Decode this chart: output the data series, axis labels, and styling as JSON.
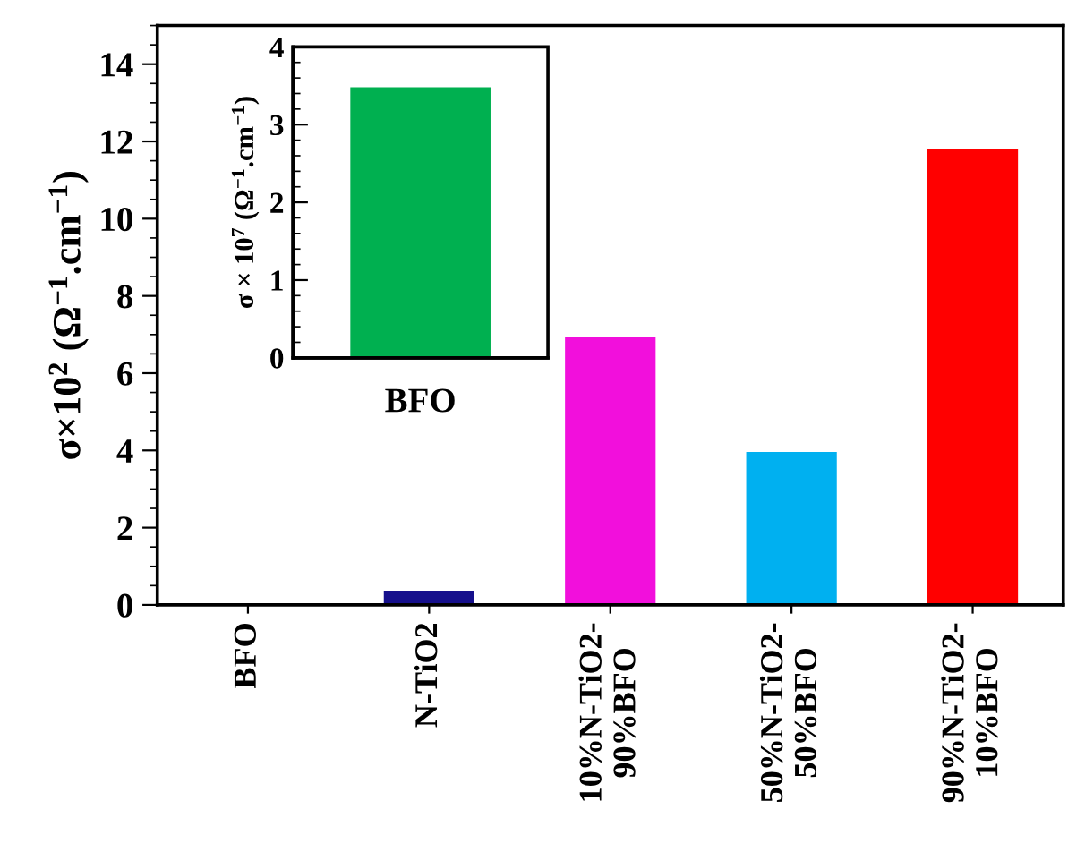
{
  "chart_data": [
    {
      "type": "bar",
      "categories": [
        "BFO",
        "N-TiO2",
        "10%N-TiO2-\n90%BFO",
        "50%N-TiO2-\n50%BFO",
        "90%N-TiO2-\n10%BFO"
      ],
      "values": [
        0.03,
        0.37,
        6.95,
        3.96,
        11.8
      ],
      "colors": [
        "#00b050",
        "#16108c",
        "#f20fdc",
        "#00b0f0",
        "#ff0000"
      ],
      "ylabel": "σ×10$^{2}$ (Ω$^{−1}$.cm$^{−1}$)",
      "ylim": [
        0,
        15
      ],
      "yticks": [
        0,
        2,
        4,
        6,
        8,
        10,
        12,
        14
      ],
      "grid": false
    },
    {
      "type": "bar",
      "categories": [
        "BFO"
      ],
      "values": [
        3.48
      ],
      "colors": [
        "#00b050"
      ],
      "ylabel": "σ × 10$^{7}$ (Ω$^{−1}$.cm$^{−1}$)",
      "ylim": [
        0,
        4
      ],
      "yticks": [
        0,
        1,
        2,
        3,
        4
      ],
      "grid": false
    }
  ]
}
